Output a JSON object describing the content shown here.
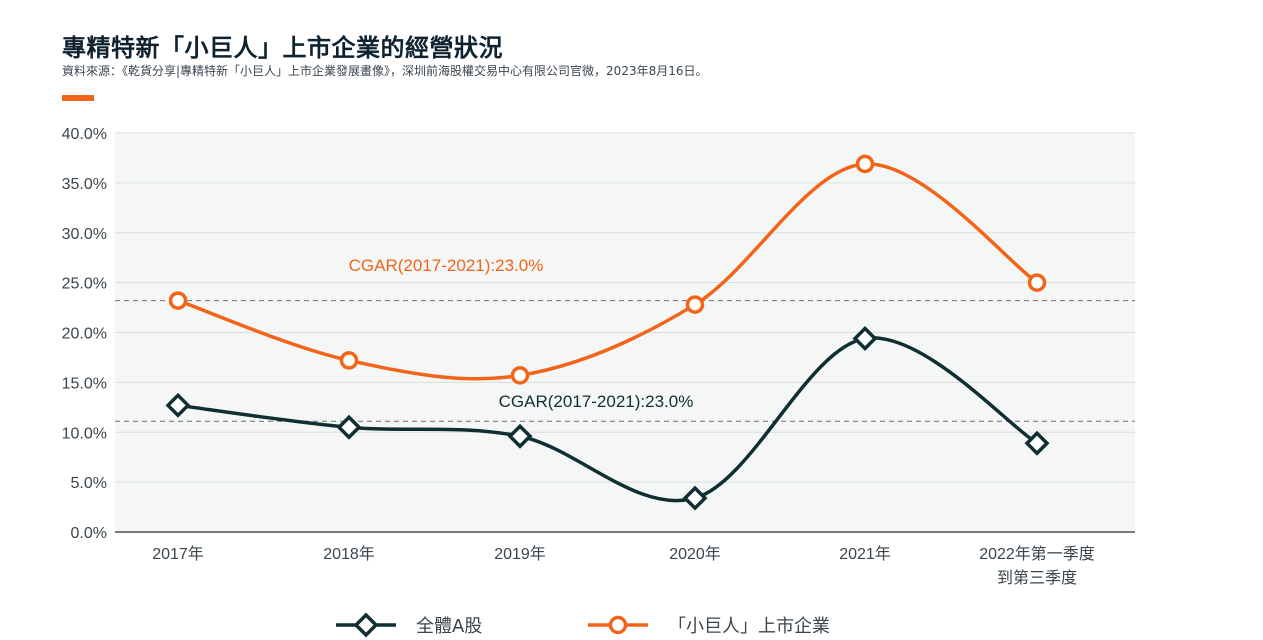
{
  "header": {
    "title": "專精特新「小巨人」上市企業的經營狀況",
    "subtitle": "資料來源：《乾貨分享|專精特新「小巨人」上市企業發展畫像》，深圳前海股權交易中心有限公司官微，2023年8月16日。"
  },
  "colors": {
    "accent": "#f26419",
    "dark": "#0f2f33",
    "plot_bg": "#f5f7f6",
    "grid": "#d9dedd",
    "ref_line": "#6b6f72"
  },
  "chart_data": {
    "type": "line",
    "categories": [
      "2017年",
      "2018年",
      "2019年",
      "2020年",
      "2021年",
      "2022年第一季度|到第三季度"
    ],
    "ylim": [
      0,
      40
    ],
    "yticks": [
      "0.0%",
      "5.0%",
      "10.0%",
      "15.0%",
      "20.0%",
      "25.0%",
      "30.0%",
      "35.0%",
      "40.0%"
    ],
    "grid": true,
    "series": [
      {
        "name": "全體A股",
        "marker": "diamond",
        "color": "#0f2f33",
        "values": [
          12.7,
          10.5,
          9.6,
          3.4,
          19.4,
          8.9
        ]
      },
      {
        "name": "「小巨人」上市企業",
        "marker": "circle",
        "color": "#f26419",
        "values": [
          23.2,
          17.2,
          15.7,
          22.8,
          36.9,
          25.0
        ]
      }
    ],
    "annotations": [
      {
        "text": "CGAR(2017-2021):23.0%",
        "series": 1,
        "ref_value": 23.2
      },
      {
        "text": "CGAR(2017-2021):23.0%",
        "series": 0,
        "ref_value": 11.1
      }
    ],
    "legend_position": "bottom"
  }
}
